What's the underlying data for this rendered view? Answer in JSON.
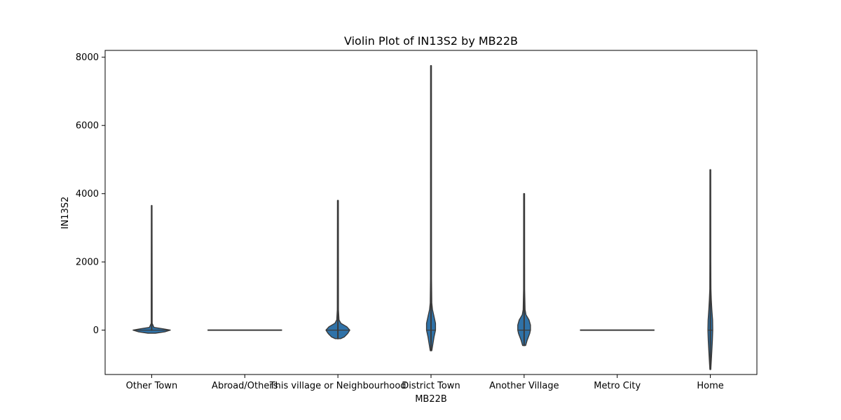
{
  "chart_data": {
    "type": "violin",
    "title": "Violin Plot of IN13S2 by MB22B",
    "xlabel": "MB22B",
    "ylabel": "IN13S2",
    "ylim": [
      -1300,
      8200
    ],
    "yticks": [
      0,
      2000,
      4000,
      6000,
      8000
    ],
    "grid": false,
    "color": "#2f72a8",
    "edge_color": "#3a3a3a",
    "categories": [
      "Other Town",
      "Abroad/Others",
      "This village or Neighbourhood",
      "District Town",
      "Another Village",
      "Metro City",
      "Home"
    ],
    "violins": [
      {
        "category": "Other Town",
        "min": 0,
        "max": 3650,
        "median": 0,
        "profile": [
          [
            -90,
            0.1
          ],
          [
            -50,
            0.35
          ],
          [
            0,
            0.5
          ],
          [
            40,
            0.3
          ],
          [
            80,
            0.06
          ],
          [
            200,
            0.012
          ],
          [
            800,
            0.012
          ],
          [
            3650,
            0.008
          ]
        ]
      },
      {
        "category": "Abroad/Others",
        "min": 0,
        "max": 0,
        "median": 0,
        "flat": true
      },
      {
        "category": "This village or Neighbourhood",
        "min": -250,
        "max": 3800,
        "median": 0,
        "profile": [
          [
            -250,
            0.07
          ],
          [
            -200,
            0.17
          ],
          [
            -100,
            0.26
          ],
          [
            0,
            0.32
          ],
          [
            100,
            0.24
          ],
          [
            200,
            0.08
          ],
          [
            300,
            0.03
          ],
          [
            600,
            0.015
          ],
          [
            3800,
            0.012
          ]
        ]
      },
      {
        "category": "District Town",
        "min": -600,
        "max": 7750,
        "median": 0,
        "profile": [
          [
            -600,
            0.02
          ],
          [
            -400,
            0.05
          ],
          [
            -200,
            0.08
          ],
          [
            0,
            0.12
          ],
          [
            200,
            0.12
          ],
          [
            400,
            0.08
          ],
          [
            600,
            0.04
          ],
          [
            800,
            0.02
          ],
          [
            1500,
            0.014
          ],
          [
            7750,
            0.012
          ]
        ]
      },
      {
        "category": "Another Village",
        "min": -450,
        "max": 4000,
        "median": 0,
        "profile": [
          [
            -450,
            0.04
          ],
          [
            -300,
            0.08
          ],
          [
            -100,
            0.15
          ],
          [
            0,
            0.17
          ],
          [
            150,
            0.17
          ],
          [
            300,
            0.13
          ],
          [
            450,
            0.05
          ],
          [
            600,
            0.025
          ],
          [
            1200,
            0.014
          ],
          [
            4000,
            0.012
          ]
        ]
      },
      {
        "category": "Metro City",
        "min": 0,
        "max": 0,
        "median": 0,
        "flat": true
      },
      {
        "category": "Home",
        "min": -1150,
        "max": 4700,
        "median": 0,
        "profile": [
          [
            -1150,
            0.012
          ],
          [
            -900,
            0.025
          ],
          [
            -600,
            0.04
          ],
          [
            -300,
            0.055
          ],
          [
            0,
            0.065
          ],
          [
            300,
            0.06
          ],
          [
            600,
            0.04
          ],
          [
            900,
            0.025
          ],
          [
            1200,
            0.015
          ],
          [
            2000,
            0.012
          ],
          [
            4700,
            0.01
          ]
        ]
      }
    ]
  }
}
